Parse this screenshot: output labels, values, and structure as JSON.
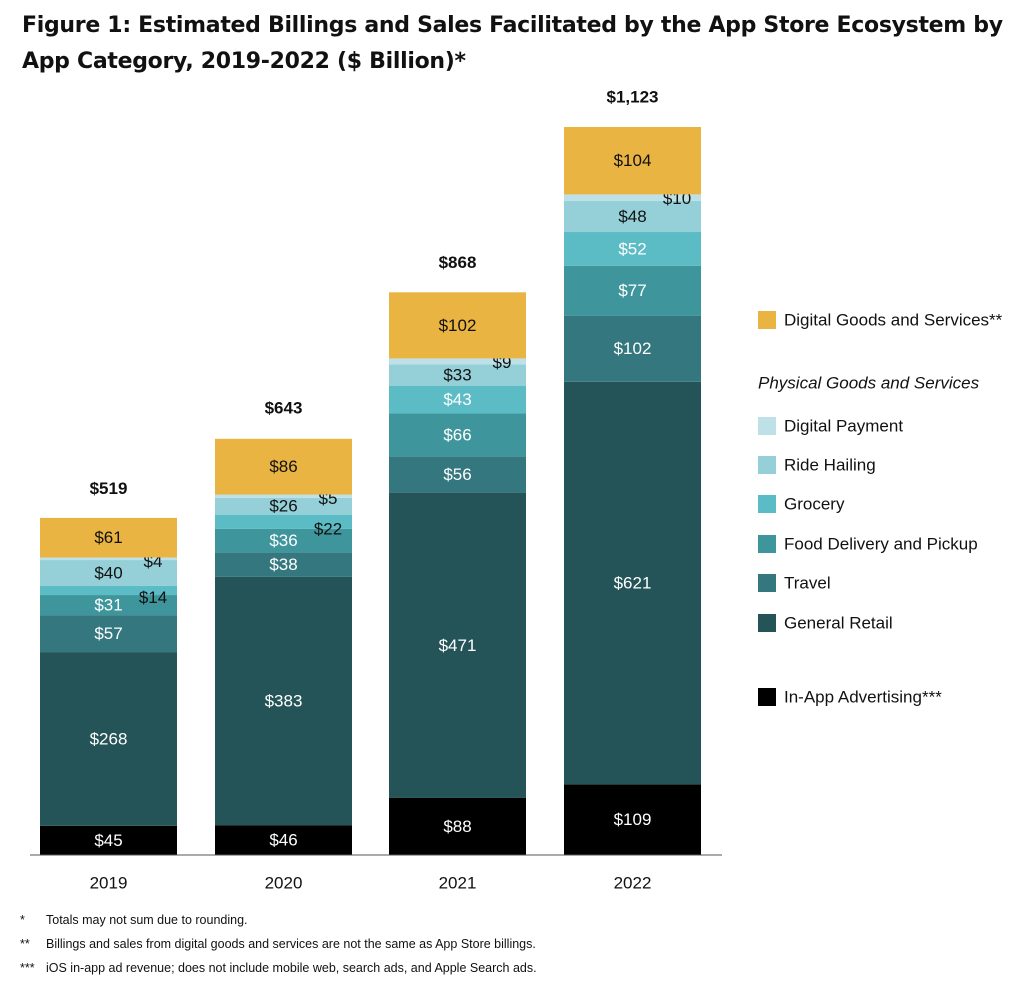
{
  "title": "Figure 1: Estimated Billings and Sales Facilitated by the App Store Ecosystem by App Category, 2019-2022 ($ Billion)*",
  "colors": {
    "Digital Goods and Services**": "#e9b441",
    "Digital Payment": "#bde1e7",
    "Ride Hailing": "#95d0d9",
    "Grocery": "#5bbcc5",
    "Food Delivery and Pickup": "#3e969c",
    "Travel": "#34777e",
    "General Retail": "#245458",
    "In-App Advertising***": "#000000"
  },
  "legend": {
    "physical_heading": "Physical Goods and Services"
  },
  "chart_data": {
    "type": "bar",
    "stacked": true,
    "categories": [
      "2019",
      "2020",
      "2021",
      "2022"
    ],
    "series": [
      {
        "name": "In-App Advertising***",
        "values": [
          45,
          46,
          88,
          109
        ],
        "labels": [
          "$45",
          "$46",
          "$88",
          "$109"
        ]
      },
      {
        "name": "General Retail",
        "values": [
          268,
          383,
          471,
          621
        ],
        "labels": [
          "$268",
          "$383",
          "$471",
          "$621"
        ]
      },
      {
        "name": "Travel",
        "values": [
          57,
          38,
          56,
          102
        ],
        "labels": [
          "$57",
          "$38",
          "$56",
          "$102"
        ]
      },
      {
        "name": "Food Delivery and Pickup",
        "values": [
          31,
          36,
          66,
          77
        ],
        "labels": [
          "$31",
          "$36",
          "$66",
          "$77"
        ]
      },
      {
        "name": "Grocery",
        "values": [
          14,
          22,
          43,
          52
        ],
        "labels": [
          "$14",
          "$22",
          "$43",
          "$52"
        ]
      },
      {
        "name": "Ride Hailing",
        "values": [
          40,
          26,
          33,
          48
        ],
        "labels": [
          "$40",
          "$26",
          "$33",
          "$48"
        ]
      },
      {
        "name": "Digital Payment",
        "values": [
          4,
          5,
          9,
          10
        ],
        "labels": [
          "$4",
          "$5",
          "$9",
          "$10"
        ]
      },
      {
        "name": "Digital Goods and Services**",
        "values": [
          61,
          86,
          102,
          104
        ],
        "labels": [
          "$61",
          "$86",
          "$102",
          "$104"
        ]
      }
    ],
    "totals": [
      519,
      643,
      868,
      1123
    ],
    "total_labels": [
      "$519",
      "$643",
      "$868",
      "$1,123"
    ],
    "ylim": [
      0,
      1123
    ],
    "grid": false,
    "legend_position": "right"
  },
  "footnotes": [
    {
      "mark": "*",
      "text": "Totals may not sum due to rounding."
    },
    {
      "mark": "**",
      "text": "Billings and sales from digital goods and services are not the same as App Store billings."
    },
    {
      "mark": "***",
      "text": "iOS in-app ad revenue; does not include mobile web, search ads, and Apple Search ads."
    }
  ]
}
